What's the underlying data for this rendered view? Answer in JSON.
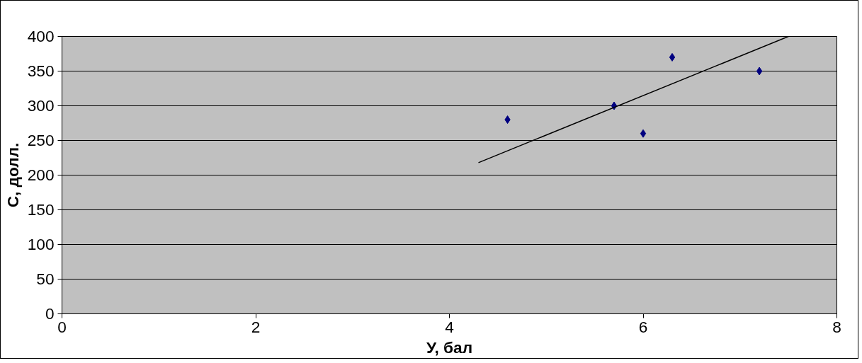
{
  "chart_data": {
    "type": "scatter",
    "xlabel": "У, бал",
    "ylabel": "С, долл.",
    "xlim": [
      0,
      8
    ],
    "xticks": [
      0,
      2,
      4,
      6,
      8
    ],
    "ylim": [
      0,
      400
    ],
    "yticks": [
      0,
      50,
      100,
      150,
      200,
      250,
      300,
      350,
      400
    ],
    "grid": "y",
    "series": [
      {
        "color": "#000080",
        "marker": "diamond",
        "x": [
          4.6,
          5.7,
          6.0,
          6.3,
          7.2
        ],
        "values": [
          280,
          300,
          260,
          370,
          350
        ]
      },
      {
        "type": "line",
        "color": "#000000",
        "line_style": "solid",
        "x": [
          4.3,
          7.5
        ],
        "values": [
          218,
          400
        ]
      }
    ]
  }
}
